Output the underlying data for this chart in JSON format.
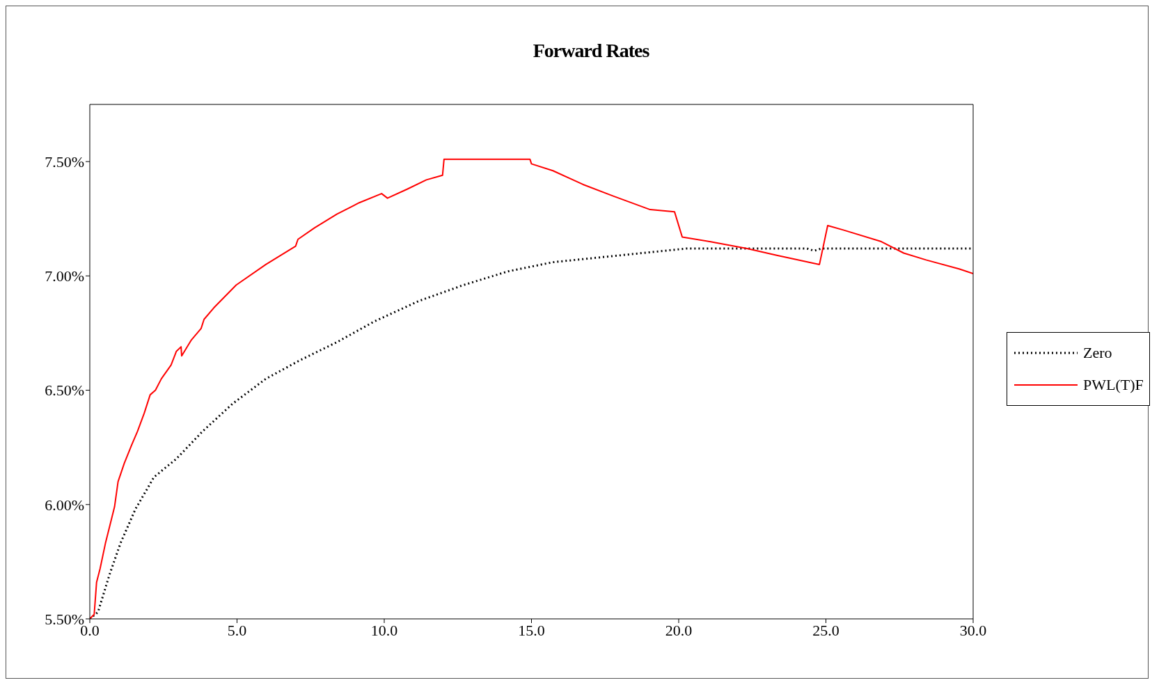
{
  "chart_data": {
    "type": "line",
    "title": "Forward Rates",
    "xlim": [
      0,
      30
    ],
    "xticks": [
      {
        "value": 0,
        "label": "0.0"
      },
      {
        "value": 5,
        "label": "5.0"
      },
      {
        "value": 10,
        "label": "10.0"
      },
      {
        "value": 15,
        "label": "15.0"
      },
      {
        "value": 20,
        "label": "20.0"
      },
      {
        "value": 25,
        "label": "25.0"
      },
      {
        "value": 30,
        "label": "30.0"
      }
    ],
    "ylim": [
      5.5,
      7.75
    ],
    "yticks": [
      {
        "value": 5.5,
        "label": "5.50%"
      },
      {
        "value": 6,
        "label": "6.00%"
      },
      {
        "value": 6.5,
        "label": "6.50%"
      },
      {
        "value": 7,
        "label": "7.00%"
      },
      {
        "value": 7.5,
        "label": "7.50%"
      }
    ],
    "legend": "right",
    "marker": "none",
    "series": [
      {
        "name": "Zero",
        "color": "#000000",
        "line_style": "dotted",
        "x": [
          0,
          0.28,
          0.66,
          1.04,
          1.55,
          2.18,
          2.94,
          3.83,
          4.84,
          5.98,
          7.12,
          8.39,
          9.65,
          11.17,
          12.69,
          14.21,
          15.73,
          17.25,
          18.77,
          20.29,
          24.35,
          24.6,
          24.85,
          30
        ],
        "values": [
          5.5,
          5.53,
          5.69,
          5.83,
          5.98,
          6.12,
          6.2,
          6.32,
          6.44,
          6.55,
          6.63,
          6.71,
          6.8,
          6.89,
          6.96,
          7.02,
          7.06,
          7.08,
          7.1,
          7.12,
          7.12,
          7.11,
          7.12,
          7.12
        ]
      },
      {
        "name": "PWL(T)F",
        "color": "#ff0000",
        "line_style": "solid",
        "x": [
          0,
          0.15,
          0.23,
          0.35,
          0.53,
          0.84,
          0.96,
          1.17,
          1.42,
          1.62,
          1.85,
          2.05,
          2.23,
          2.43,
          2.76,
          2.94,
          3.1,
          3.12,
          3.45,
          3.78,
          3.88,
          4.21,
          4.97,
          5.98,
          6.99,
          7.07,
          7.63,
          8.39,
          9.15,
          9.91,
          10.11,
          10.79,
          11.43,
          11.98,
          12.03,
          12.31,
          14.95,
          15,
          15.73,
          16.75,
          17.76,
          19.03,
          19.86,
          20.12,
          21.05,
          22.32,
          23.33,
          24.78,
          25.06,
          25.61,
          26.88,
          27.64,
          28.4,
          29.54,
          30
        ],
        "values": [
          5.5,
          5.52,
          5.66,
          5.72,
          5.83,
          5.99,
          6.1,
          6.18,
          6.26,
          6.32,
          6.4,
          6.48,
          6.5,
          6.55,
          6.61,
          6.67,
          6.69,
          6.65,
          6.72,
          6.77,
          6.81,
          6.86,
          6.96,
          7.05,
          7.13,
          7.16,
          7.21,
          7.27,
          7.32,
          7.36,
          7.34,
          7.38,
          7.42,
          7.44,
          7.51,
          7.51,
          7.51,
          7.49,
          7.46,
          7.4,
          7.35,
          7.29,
          7.28,
          7.17,
          7.15,
          7.12,
          7.09,
          7.05,
          7.22,
          7.2,
          7.15,
          7.1,
          7.07,
          7.03,
          7.01
        ]
      }
    ]
  }
}
